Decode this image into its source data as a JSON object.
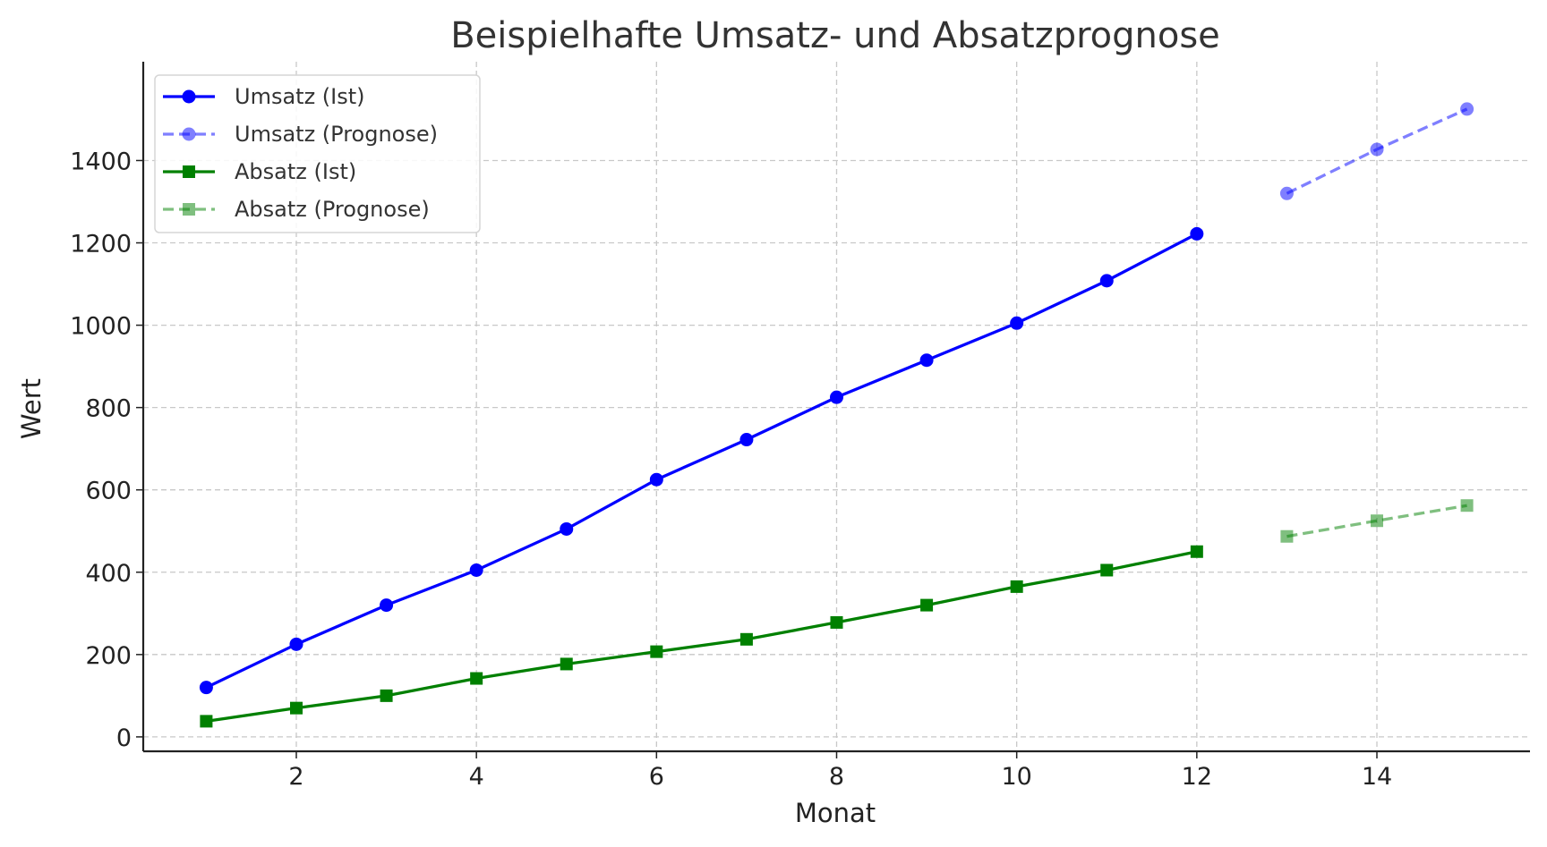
{
  "chart_data": {
    "type": "line",
    "title": "Beispielhafte Umsatz- und Absatzprognose",
    "xlabel": "Monat",
    "ylabel": "Wert",
    "xlim": [
      0.3,
      15.7
    ],
    "ylim": [
      -35,
      1640
    ],
    "xticks": [
      2,
      4,
      6,
      8,
      10,
      12,
      14
    ],
    "yticks": [
      0,
      200,
      400,
      600,
      800,
      1000,
      1200,
      1400
    ],
    "grid": true,
    "legend_position": "top-left",
    "series": [
      {
        "name": "Umsatz (Ist)",
        "color": "#0000ff",
        "style": "solid",
        "marker": "circle",
        "alpha": 1,
        "x": [
          1,
          2,
          3,
          4,
          5,
          6,
          7,
          8,
          9,
          10,
          11,
          12
        ],
        "y": [
          120,
          225,
          320,
          405,
          505,
          625,
          722,
          825,
          915,
          1005,
          1108,
          1222
        ]
      },
      {
        "name": "Umsatz (Prognose)",
        "color": "#0000ff",
        "style": "dashed",
        "marker": "circle",
        "alpha": 0.5,
        "x": [
          13,
          14,
          15
        ],
        "y": [
          1320,
          1427,
          1525
        ]
      },
      {
        "name": "Absatz (Ist)",
        "color": "#008000",
        "style": "solid",
        "marker": "square",
        "alpha": 1,
        "x": [
          1,
          2,
          3,
          4,
          5,
          6,
          7,
          8,
          9,
          10,
          11,
          12
        ],
        "y": [
          38,
          70,
          100,
          142,
          177,
          207,
          237,
          278,
          320,
          365,
          405,
          450
        ]
      },
      {
        "name": "Absatz (Prognose)",
        "color": "#008000",
        "style": "dashed",
        "marker": "square",
        "alpha": 0.5,
        "x": [
          13,
          14,
          15
        ],
        "y": [
          487,
          525,
          562
        ]
      }
    ]
  }
}
